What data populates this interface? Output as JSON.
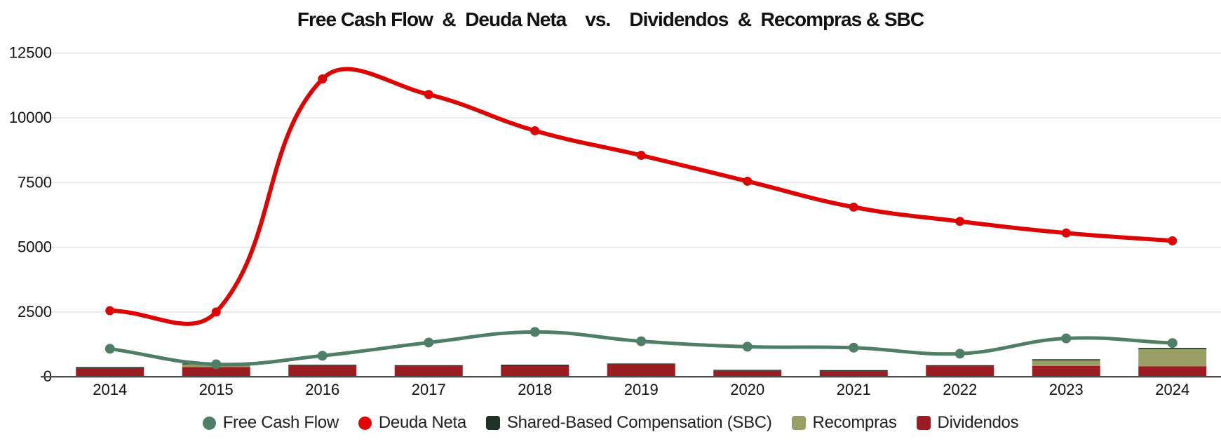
{
  "chart_data": {
    "type": "mixed",
    "title": "Free Cash Flow  &  Deuda Neta    vs.    Dividendos  &  Recompras & SBC",
    "categories": [
      "2014",
      "2015",
      "2016",
      "2017",
      "2018",
      "2019",
      "2020",
      "2021",
      "2022",
      "2023",
      "2024"
    ],
    "y_axis": {
      "min": 0,
      "max": 12500,
      "tick_step": 2500,
      "ticks": [
        "0",
        "2500",
        "5000",
        "7500",
        "10000",
        "12500"
      ]
    },
    "grid": true,
    "legend_position": "bottom",
    "line_series": [
      {
        "name": "Free Cash Flow",
        "color": "#4e7e66",
        "marker": "circle",
        "values": [
          1080,
          480,
          810,
          1320,
          1730,
          1370,
          1160,
          1120,
          890,
          1480,
          1300
        ]
      },
      {
        "name": "Deuda Neta",
        "color": "#dd0404",
        "marker": "circle",
        "values": [
          2550,
          2500,
          11500,
          10900,
          9500,
          8550,
          7550,
          6550,
          6000,
          5550,
          5250
        ]
      }
    ],
    "bar_series_stacked": [
      {
        "name": "Dividendos",
        "color": "#9b1c21",
        "values": [
          335,
          375,
          430,
          410,
          425,
          470,
          230,
          220,
          410,
          420,
          405
        ]
      },
      {
        "name": "Recompras",
        "color": "#989e66",
        "values": [
          0,
          100,
          0,
          0,
          0,
          0,
          0,
          0,
          0,
          210,
          665
        ]
      },
      {
        "name": "Shared-Based Compensation (SBC)",
        "color": "#1e3328",
        "values": [
          40,
          35,
          35,
          35,
          40,
          40,
          35,
          35,
          35,
          45,
          45
        ]
      }
    ],
    "legend": [
      {
        "label": "Free Cash Flow",
        "color": "#4e7e66",
        "shape": "circle"
      },
      {
        "label": "Deuda Neta",
        "color": "#e00404",
        "shape": "circle"
      },
      {
        "label": "Shared-Based Compensation (SBC)",
        "color": "#1e3328",
        "shape": "square"
      },
      {
        "label": "Recompras",
        "color": "#989e66",
        "shape": "square"
      },
      {
        "label": "Dividendos",
        "color": "#9b1c21",
        "shape": "square"
      }
    ],
    "colors": {
      "gridline": "#e3e3e3",
      "axis_line": "#4d4d4d",
      "tick_label": "#111111"
    }
  }
}
